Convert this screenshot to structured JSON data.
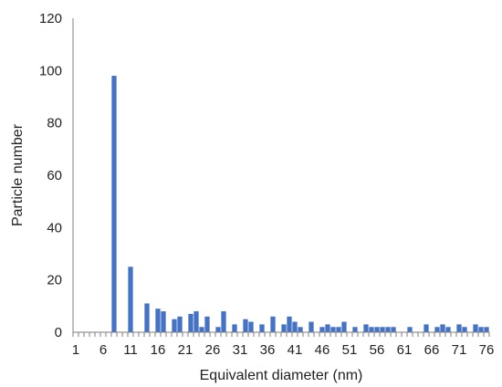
{
  "chart_data": {
    "type": "bar",
    "xlabel": "Equivalent diameter (nm)",
    "ylabel": "Particle number",
    "ylim": [
      0,
      120
    ],
    "y_ticks": [
      "0",
      "20",
      "40",
      "60",
      "80",
      "100",
      "120"
    ],
    "x_tick_labels": [
      "1",
      "6",
      "11",
      "16",
      "21",
      "26",
      "31",
      "36",
      "41",
      "46",
      "51",
      "56",
      "61",
      "66",
      "71",
      "76"
    ],
    "grid": false,
    "legend": "none",
    "bar_color": "#4472C4",
    "categories": [
      1,
      2,
      3,
      4,
      5,
      6,
      7,
      8,
      9,
      10,
      11,
      12,
      13,
      14,
      15,
      16,
      17,
      18,
      19,
      20,
      21,
      22,
      23,
      24,
      25,
      26,
      27,
      28,
      29,
      30,
      31,
      32,
      33,
      34,
      35,
      36,
      37,
      38,
      39,
      40,
      41,
      42,
      43,
      44,
      45,
      46,
      47,
      48,
      49,
      50,
      51,
      52,
      53,
      54,
      55,
      56,
      57,
      58,
      59,
      60,
      61,
      62,
      63,
      64,
      65,
      66,
      67,
      68,
      69,
      70,
      71,
      72,
      73,
      74,
      75,
      76
    ],
    "values": [
      0,
      0,
      0,
      0,
      0,
      0,
      0,
      98,
      0,
      0,
      25,
      0,
      0,
      11,
      0,
      9,
      8,
      0,
      5,
      6,
      0,
      7,
      8,
      2,
      6,
      0,
      2,
      8,
      0,
      3,
      0,
      5,
      4,
      0,
      3,
      0,
      6,
      0,
      3,
      6,
      4,
      2,
      0,
      4,
      0,
      2,
      3,
      2,
      2,
      4,
      0,
      2,
      0,
      3,
      2,
      2,
      2,
      2,
      2,
      0,
      0,
      2,
      0,
      0,
      3,
      0,
      2,
      3,
      2,
      0,
      3,
      2,
      0,
      3,
      2,
      2
    ]
  }
}
